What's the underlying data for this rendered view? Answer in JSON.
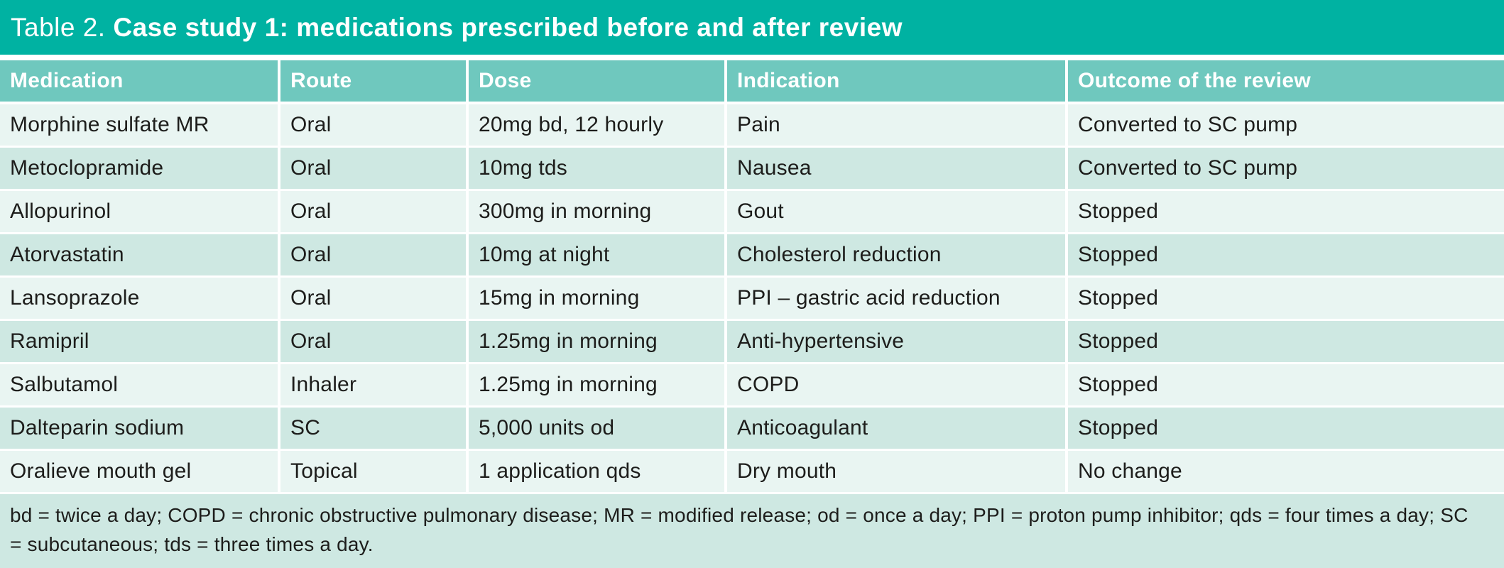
{
  "colors": {
    "title_bar_bg": "#00b2a2",
    "header_bg": "#6fc8be",
    "row_light": "#e9f5f2",
    "row_dark": "#cee8e2",
    "footnote_bg": "#cee8e2",
    "separator": "#ffffff",
    "header_text": "#ffffff",
    "body_text": "#1d1d1b"
  },
  "title": {
    "prefix": "Table 2. ",
    "text": "Case study 1: medications prescribed before and after review"
  },
  "table": {
    "columns": [
      "Medication",
      "Route",
      "Dose",
      "Indication",
      "Outcome of the review"
    ],
    "rows": [
      [
        "Morphine sulfate MR",
        "Oral",
        "20mg bd, 12 hourly",
        "Pain",
        "Converted to SC pump"
      ],
      [
        "Metoclopramide",
        "Oral",
        "10mg tds",
        "Nausea",
        "Converted to SC pump"
      ],
      [
        "Allopurinol",
        "Oral",
        "300mg in morning",
        "Gout",
        "Stopped"
      ],
      [
        "Atorvastatin",
        "Oral",
        "10mg at night",
        "Cholesterol reduction",
        "Stopped"
      ],
      [
        "Lansoprazole",
        "Oral",
        "15mg in morning",
        "PPI – gastric acid reduction",
        "Stopped"
      ],
      [
        "Ramipril",
        "Oral",
        "1.25mg in morning",
        "Anti-hypertensive",
        "Stopped"
      ],
      [
        "Salbutamol",
        "Inhaler",
        "1.25mg in morning",
        "COPD",
        "Stopped"
      ],
      [
        "Dalteparin sodium",
        "SC",
        "5,000 units od",
        "Anticoagulant",
        "Stopped"
      ],
      [
        "Oralieve mouth gel",
        "Topical",
        "1 application qds",
        "Dry mouth",
        "No change"
      ]
    ]
  },
  "footnote": "bd = twice a day; COPD = chronic obstructive pulmonary disease; MR = modified release; od = once a day; PPI = proton pump inhibitor; qds = four times a day; SC = subcutaneous; tds = three times a day."
}
